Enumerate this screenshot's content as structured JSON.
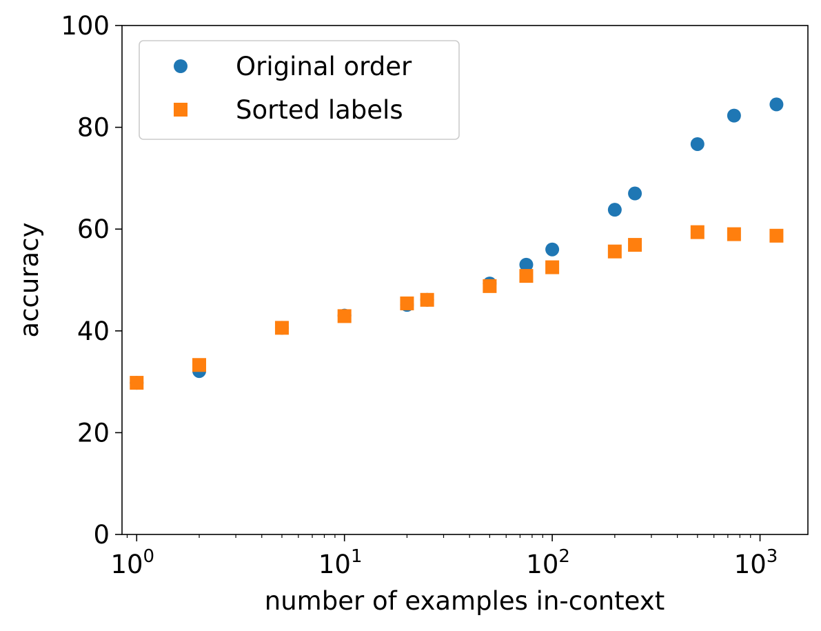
{
  "chart_data": {
    "type": "scatter",
    "title": "",
    "xlabel": "number of examples in-context",
    "ylabel": "accuracy",
    "x_scale": "log",
    "xlim": [
      0.85,
      1700
    ],
    "ylim": [
      0,
      100
    ],
    "yticks": [
      0,
      20,
      40,
      60,
      80,
      100
    ],
    "xticks": [
      {
        "value": 1,
        "base": "10",
        "exp": "0"
      },
      {
        "value": 10,
        "base": "10",
        "exp": "1"
      },
      {
        "value": 100,
        "base": "10",
        "exp": "2"
      },
      {
        "value": 1000,
        "base": "10",
        "exp": "3"
      }
    ],
    "grid": false,
    "legend_position": "top-left",
    "series": [
      {
        "name": "Original order",
        "marker": "circle",
        "color": "#1f77b4",
        "points": [
          {
            "x": 1,
            "y": 29.8
          },
          {
            "x": 2,
            "y": 32.1
          },
          {
            "x": 5,
            "y": 40.6
          },
          {
            "x": 10,
            "y": 43.0
          },
          {
            "x": 20,
            "y": 45.1
          },
          {
            "x": 25,
            "y": 46.1
          },
          {
            "x": 50,
            "y": 49.3
          },
          {
            "x": 75,
            "y": 53.0
          },
          {
            "x": 100,
            "y": 56.0
          },
          {
            "x": 200,
            "y": 63.8
          },
          {
            "x": 250,
            "y": 67.0
          },
          {
            "x": 500,
            "y": 76.7
          },
          {
            "x": 750,
            "y": 82.3
          },
          {
            "x": 1200,
            "y": 84.5
          }
        ]
      },
      {
        "name": "Sorted labels",
        "marker": "square",
        "color": "#ff7f0e",
        "points": [
          {
            "x": 1,
            "y": 29.8
          },
          {
            "x": 2,
            "y": 33.3
          },
          {
            "x": 5,
            "y": 40.6
          },
          {
            "x": 10,
            "y": 42.9
          },
          {
            "x": 20,
            "y": 45.4
          },
          {
            "x": 25,
            "y": 46.1
          },
          {
            "x": 50,
            "y": 48.8
          },
          {
            "x": 75,
            "y": 50.8
          },
          {
            "x": 100,
            "y": 52.5
          },
          {
            "x": 200,
            "y": 55.6
          },
          {
            "x": 250,
            "y": 56.9
          },
          {
            "x": 500,
            "y": 59.4
          },
          {
            "x": 750,
            "y": 59.0
          },
          {
            "x": 1200,
            "y": 58.7
          }
        ]
      }
    ]
  }
}
